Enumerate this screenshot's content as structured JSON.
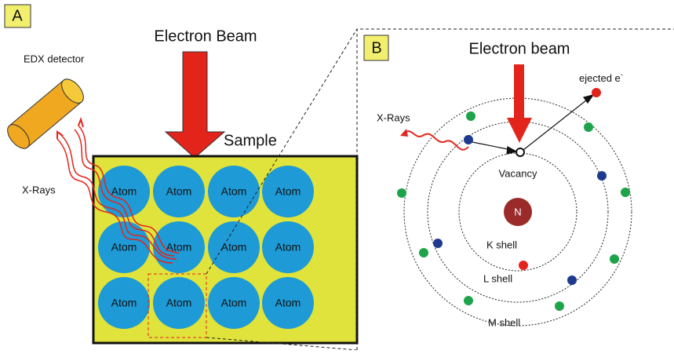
{
  "panel_a": {
    "label": "A",
    "detector_label": "EDX detector",
    "beam_label": "Electron Beam",
    "sample_label": "Sample",
    "xrays_label": "X-Rays",
    "atoms": [
      "Atom",
      "Atom",
      "Atom",
      "Atom",
      "Atom",
      "Atom",
      "Atom",
      "Atom",
      "Atom",
      "Atom",
      "Atom",
      "Atom"
    ]
  },
  "panel_b": {
    "label": "B",
    "beam_label": "Electron beam",
    "ejected_label": {
      "text": "ejected e",
      "sup": "-"
    },
    "xrays_label": "X-Rays",
    "vacancy_label": "Vacancy",
    "nucleus_label": "N",
    "shells": [
      "K shell",
      "L shell",
      "M shell"
    ]
  }
}
